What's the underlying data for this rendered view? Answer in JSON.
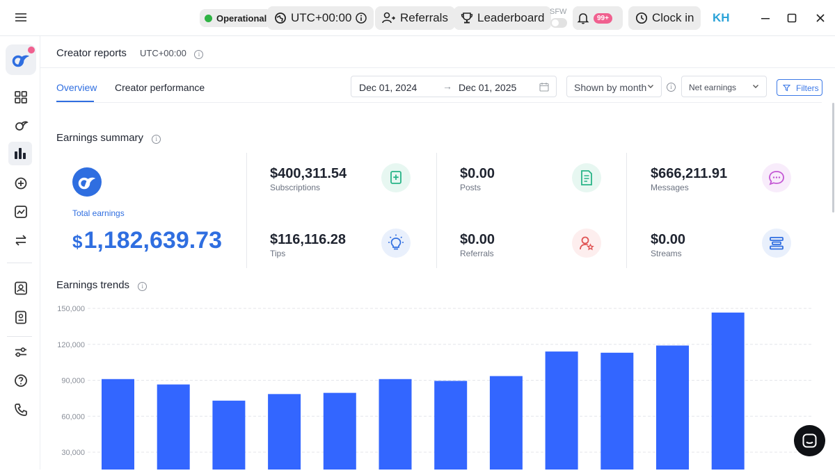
{
  "topbar": {
    "status": "Operational",
    "timezone": "UTC+00:00",
    "referrals": "Referrals",
    "leaderboard": "Leaderboard",
    "sfw": "SFW",
    "notifications_badge": "99+",
    "clock_in": "Clock in",
    "user_initials": "KH"
  },
  "header": {
    "title": "Creator reports",
    "timezone": "UTC+00:00"
  },
  "tabs": [
    {
      "label": "Overview",
      "active": true
    },
    {
      "label": "Creator performance",
      "active": false
    }
  ],
  "filters": {
    "date_from": "Dec 01, 2024",
    "date_to": "Dec 01, 2025",
    "grouping": "Shown by month",
    "metric": "Net earnings",
    "filters_label": "Filters"
  },
  "summary": {
    "title": "Earnings summary",
    "total_label": "Total earnings",
    "total_currency": "$",
    "total_value": "1,182,639.73",
    "stats": [
      {
        "value": "$400,311.54",
        "label": "Subscriptions",
        "icon": "subscriptions-icon",
        "color": "#28b487",
        "bg": "#e7f7f1"
      },
      {
        "value": "$0.00",
        "label": "Posts",
        "icon": "posts-icon",
        "color": "#28b487",
        "bg": "#e7f7f1"
      },
      {
        "value": "$666,211.91",
        "label": "Messages",
        "icon": "messages-icon",
        "color": "#c357d4",
        "bg": "#f8ecfb"
      },
      {
        "value": "$116,116.28",
        "label": "Tips",
        "icon": "tips-icon",
        "color": "#2f6ee0",
        "bg": "#e9f0fc"
      },
      {
        "value": "$0.00",
        "label": "Referrals",
        "icon": "referrals-icon",
        "color": "#e05454",
        "bg": "#fdeeee"
      },
      {
        "value": "$0.00",
        "label": "Streams",
        "icon": "streams-icon",
        "color": "#2f6ee0",
        "bg": "#e9f0fc"
      }
    ]
  },
  "trends": {
    "title": "Earnings trends"
  },
  "chart_data": {
    "type": "bar",
    "title": "",
    "xlabel": "",
    "ylabel": "",
    "y_ticks": [
      "150,000",
      "120,000",
      "90,000",
      "60,000",
      "30,000"
    ],
    "ylim": [
      20000,
      150000
    ],
    "values": [
      91000,
      86500,
      73000,
      78500,
      79500,
      91000,
      89500,
      93500,
      114000,
      113000,
      119000,
      146500
    ],
    "bar_color": "#3366ff",
    "grid": true
  }
}
